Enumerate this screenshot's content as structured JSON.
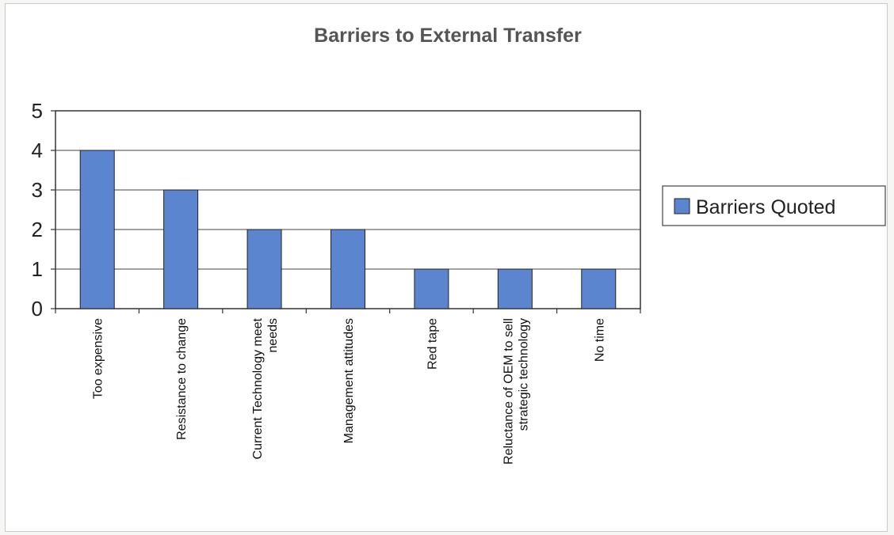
{
  "chart_data": {
    "type": "bar",
    "title": "Barriers to External Transfer",
    "categories": [
      [
        "Too expensive"
      ],
      [
        "Resistance to change"
      ],
      [
        "Current Technology meet",
        "needs"
      ],
      [
        "Management attitudes"
      ],
      [
        "Red tape"
      ],
      [
        "Reluctance of OEM to sell",
        "strategic technology"
      ],
      [
        "No time"
      ]
    ],
    "series": [
      {
        "name": "Barriers Quoted",
        "values": [
          4,
          3,
          2,
          2,
          1,
          1,
          1
        ],
        "color": "#5b86cf"
      }
    ],
    "ylim": [
      0,
      5
    ],
    "yticks": [
      0,
      1,
      2,
      3,
      4,
      5
    ],
    "grid": true,
    "legend_position": "right"
  }
}
